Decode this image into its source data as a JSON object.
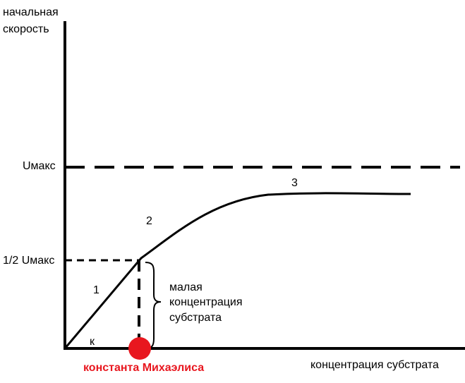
{
  "axes": {
    "y_label": [
      "начальная",
      "скорость"
    ],
    "x_label": "концентрация субстрата"
  },
  "levels": {
    "vmax": "Uмакс",
    "half_vmax": "1/2 Uмакс"
  },
  "segments": [
    "1",
    "2",
    "3"
  ],
  "k_label": "к",
  "brace_note": [
    "малая",
    "концентрация",
    "субстрата"
  ],
  "michaelis_constant": "константа Михаэлиса"
}
